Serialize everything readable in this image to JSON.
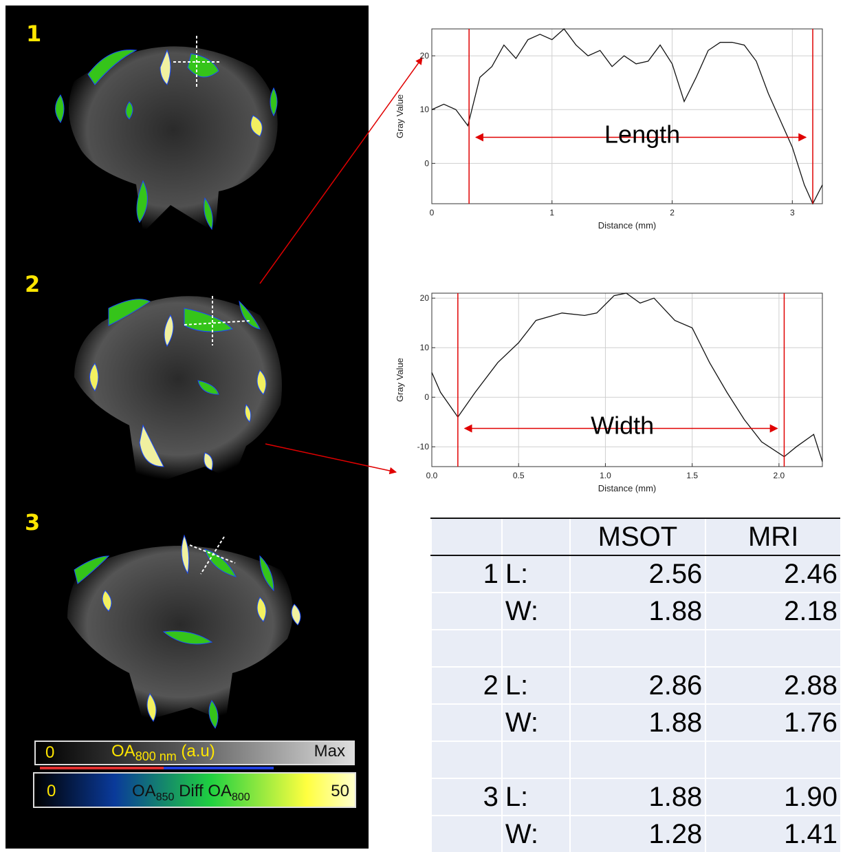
{
  "figure": {
    "slice_labels": [
      "1",
      "2",
      "3"
    ],
    "colorbar_gray": {
      "min": "0",
      "label": "OA",
      "label_sub": "800 nm",
      "unit": "(a.u)",
      "max": "Max"
    },
    "colorbar_color": {
      "min": "0",
      "label_a": "OA",
      "label_a_sub": "850",
      "label_mid": "Diff",
      "label_b": "OA",
      "label_b_sub": "800",
      "max": "50"
    },
    "colors": {
      "accent_red": "#e00000",
      "label_yellow": "#ffe600"
    }
  },
  "chart_data": [
    {
      "type": "line",
      "annotation": "Length",
      "xlabel": "Distance (mm)",
      "ylabel": "Gray Value",
      "xlim": [
        0,
        3.25
      ],
      "ylim": [
        -7.5,
        25
      ],
      "xticks": [
        0,
        1,
        2,
        3
      ],
      "yticks": [
        0,
        10,
        20
      ],
      "grid": true,
      "markers": [
        0.31,
        3.17
      ],
      "x": [
        0,
        0.1,
        0.2,
        0.3,
        0.4,
        0.5,
        0.6,
        0.7,
        0.8,
        0.9,
        1.0,
        1.1,
        1.2,
        1.3,
        1.4,
        1.5,
        1.6,
        1.7,
        1.8,
        1.9,
        2.0,
        2.1,
        2.2,
        2.3,
        2.4,
        2.5,
        2.6,
        2.7,
        2.8,
        2.9,
        3.0,
        3.1,
        3.17,
        3.25
      ],
      "y": [
        10,
        11,
        10,
        7,
        16,
        18,
        22,
        19.5,
        23,
        24,
        23,
        25,
        22,
        20,
        21,
        18,
        20,
        18.5,
        19,
        22,
        18.5,
        11.5,
        16,
        21,
        22.5,
        22.5,
        22,
        19,
        13,
        8,
        3,
        -4,
        -7.5,
        -4
      ]
    },
    {
      "type": "line",
      "annotation": "Width",
      "xlabel": "Distance (mm)",
      "ylabel": "Gray Value",
      "xlim": [
        0,
        2.25
      ],
      "ylim": [
        -14,
        21
      ],
      "xticks": [
        0.0,
        0.5,
        1.0,
        1.5,
        2.0
      ],
      "xtick_labels": [
        "0.0",
        "0.5",
        "1.0",
        "1.5",
        "2.0"
      ],
      "yticks": [
        -10,
        0,
        10,
        20
      ],
      "grid": true,
      "markers": [
        0.15,
        2.03
      ],
      "x": [
        0,
        0.05,
        0.15,
        0.25,
        0.38,
        0.5,
        0.6,
        0.75,
        0.88,
        0.95,
        1.05,
        1.12,
        1.2,
        1.28,
        1.4,
        1.5,
        1.6,
        1.7,
        1.8,
        1.9,
        2.03,
        2.1,
        2.2,
        2.25
      ],
      "y": [
        5,
        1,
        -4,
        1,
        7,
        11,
        15.5,
        17,
        16.5,
        17,
        20.5,
        21,
        19,
        20,
        15.5,
        14,
        7,
        1,
        -4.5,
        -9,
        -12,
        -10,
        -7.5,
        -13
      ]
    }
  ],
  "comparison_table": {
    "headers": [
      "",
      "",
      "MSOT",
      "MRI"
    ],
    "rows": [
      [
        "1",
        "L:",
        "2.56",
        "2.46"
      ],
      [
        "",
        "W:",
        "1.88",
        "2.18"
      ],
      [
        "",
        "",
        "",
        ""
      ],
      [
        "2",
        "L:",
        "2.86",
        "2.88"
      ],
      [
        "",
        "W:",
        "1.88",
        "1.76"
      ],
      [
        "",
        "",
        "",
        ""
      ],
      [
        "3",
        "L:",
        "1.88",
        "1.90"
      ],
      [
        "",
        "W:",
        "1.28",
        "1.41"
      ]
    ]
  }
}
